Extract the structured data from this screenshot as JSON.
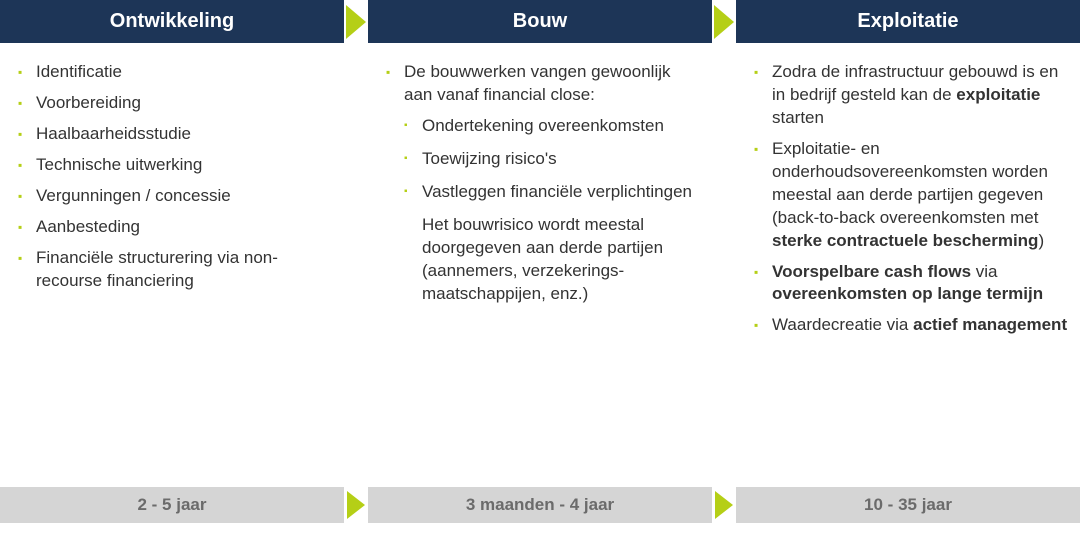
{
  "type": "infographic",
  "layout": "three-column-process",
  "colors": {
    "header_bg": "#1d3557",
    "header_text": "#ffffff",
    "arrow": "#b5cf16",
    "bullet": "#b5cf16",
    "body_text": "#333333",
    "footer_bg": "#d5d5d5",
    "footer_text": "#6b6b6b",
    "background": "#ffffff"
  },
  "typography": {
    "header_fontsize": 20,
    "body_fontsize": 17,
    "footer_fontsize": 17,
    "font_family": "Arial"
  },
  "columns": [
    {
      "title": "Ontwikkeling",
      "duration": "2 - 5 jaar",
      "items": [
        {
          "text": "Identificatie"
        },
        {
          "text": "Voorbereiding"
        },
        {
          "text": "Haalbaarheidsstudie"
        },
        {
          "text": "Technische uitwerking"
        },
        {
          "text": "Vergunningen / concessie"
        },
        {
          "text": "Aanbesteding"
        },
        {
          "text": "Financiële structurering via non-recourse financiering"
        }
      ]
    },
    {
      "title": "Bouw",
      "duration": "3 maanden - 4 jaar",
      "items": [
        {
          "text": "De bouwwerken vangen gewoonlijk aan vanaf financial close:",
          "sub": [
            "Ondertekening overeenkomsten",
            "Toewijzing risico's",
            "Vastleggen financiële verplichtingen"
          ],
          "trailing": "Het bouwrisico wordt meestal doorgegeven aan derde partijen (aannemers, verzekerings-maatschappijen, enz.)"
        }
      ]
    },
    {
      "title": "Exploitatie",
      "duration": "10 - 35 jaar",
      "items": [
        {
          "html": "Zodra de infrastructuur gebouwd is en in bedrijf gesteld kan de <b class='heavy'>exploitatie</b> starten"
        },
        {
          "html": "Exploitatie- en onderhoudsovereenkomsten worden meestal aan derde partijen gegeven (back-to-back overeenkomsten met <b class='heavy'>sterke contractuele bescherming</b>)"
        },
        {
          "html": "<b class='heavy'>Voorspelbare cash flows</b> via <b class='heavy'>overeenkomsten op lange termijn</b>"
        },
        {
          "html": "Waardecreatie via <b class='heavy'>actief management</b>"
        }
      ]
    }
  ]
}
